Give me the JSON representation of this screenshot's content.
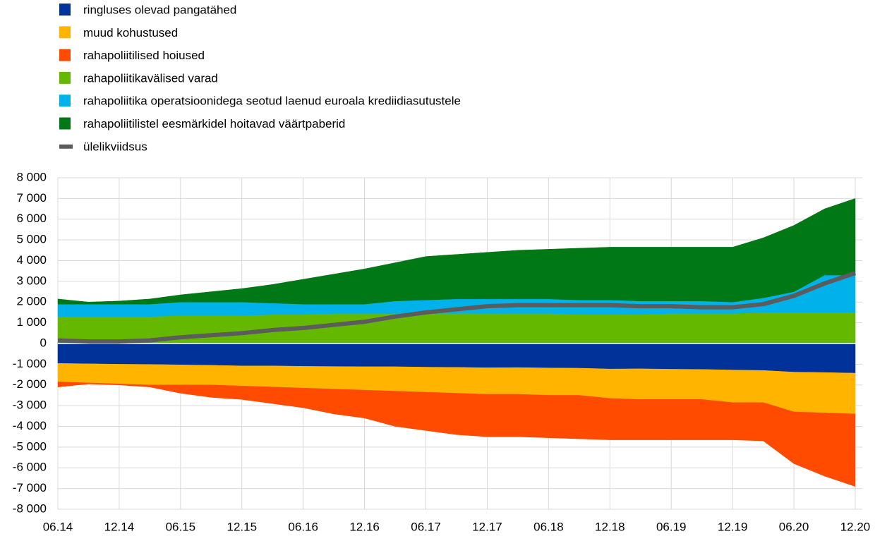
{
  "chart_data": {
    "type": "area",
    "stacked": true,
    "categories": [
      "06.14",
      null,
      "12.14",
      null,
      "06.15",
      null,
      "12.15",
      null,
      "06.16",
      null,
      "12.16",
      null,
      "06.17",
      null,
      "12.17",
      null,
      "06.18",
      null,
      "12.18",
      null,
      "06.19",
      null,
      "12.19",
      null,
      "06.20",
      null,
      "12.20"
    ],
    "ylim": [
      -8000,
      8000
    ],
    "yticks": [
      {
        "value": 8000,
        "label": "8 000"
      },
      {
        "value": 7000,
        "label": "7 000"
      },
      {
        "value": 6000,
        "label": "6 000"
      },
      {
        "value": 5000,
        "label": "5 000"
      },
      {
        "value": 4000,
        "label": "4 000"
      },
      {
        "value": 3000,
        "label": "3 000"
      },
      {
        "value": 2000,
        "label": "2 000"
      },
      {
        "value": 1000,
        "label": "1 000"
      },
      0,
      {
        "value": -1000,
        "label": "-1 000"
      },
      {
        "value": -2000,
        "label": "-2 000"
      },
      {
        "value": -3000,
        "label": "-3 000"
      },
      {
        "value": -4000,
        "label": "-4 000"
      },
      {
        "value": -5000,
        "label": "-5 000"
      },
      {
        "value": -6000,
        "label": "-6 000"
      },
      {
        "value": -7000,
        "label": "-7 000"
      },
      {
        "value": -8000,
        "label": "-8 000"
      }
    ],
    "grid": true,
    "series": [
      {
        "name": "ringluses olevad pangatähed",
        "color": "#003299",
        "values": [
          -960,
          -980,
          -1000,
          -1010,
          -1030,
          -1050,
          -1080,
          -1080,
          -1100,
          -1110,
          -1120,
          -1120,
          -1140,
          -1150,
          -1170,
          -1160,
          -1180,
          -1190,
          -1230,
          -1220,
          -1240,
          -1250,
          -1280,
          -1300,
          -1380,
          -1400,
          -1430
        ]
      },
      {
        "name": "muud kohustused",
        "color": "#ffb400",
        "values": [
          -890,
          -920,
          -950,
          -990,
          -970,
          -950,
          -970,
          -1020,
          -1050,
          -1090,
          -1130,
          -1180,
          -1210,
          -1250,
          -1280,
          -1290,
          -1320,
          -1310,
          -1420,
          -1480,
          -1460,
          -1450,
          -1570,
          -1550,
          -1920,
          -1950,
          -1970
        ]
      },
      {
        "name": "rahapoliitilised hoiused",
        "color": "#ff4b00",
        "values": [
          -250,
          -50,
          -50,
          -100,
          -400,
          -600,
          -650,
          -800,
          -950,
          -1200,
          -1350,
          -1700,
          -1850,
          -2000,
          -2050,
          -2050,
          -2050,
          -2100,
          -2000,
          -1950,
          -1950,
          -1950,
          -1800,
          -1850,
          -2500,
          -3050,
          -3500
        ]
      },
      {
        "name": "rahapoliitikavälised varad",
        "color": "#65b800",
        "values": [
          1300,
          1300,
          1300,
          1300,
          1350,
          1350,
          1350,
          1400,
          1400,
          1450,
          1450,
          1450,
          1450,
          1450,
          1450,
          1450,
          1450,
          1400,
          1400,
          1400,
          1450,
          1450,
          1450,
          1500,
          1500,
          1500,
          1500
        ]
      },
      {
        "name": "rahapoliitika operatsioonidega  seotud  laenud  euroala  krediidiasutustele",
        "color": "#00b1ea",
        "values": [
          600,
          600,
          600,
          600,
          650,
          650,
          650,
          550,
          500,
          450,
          450,
          600,
          650,
          700,
          700,
          700,
          700,
          700,
          700,
          650,
          600,
          600,
          550,
          700,
          1000,
          1800,
          1800
        ]
      },
      {
        "name": "rahapoliitilistel eesmärkidel hoitavad väärtpaberid",
        "color": "#007816",
        "values": [
          250,
          100,
          150,
          250,
          350,
          500,
          650,
          900,
          1200,
          1450,
          1700,
          1850,
          2100,
          2150,
          2250,
          2350,
          2400,
          2500,
          2550,
          2600,
          2600,
          2600,
          2650,
          2900,
          3200,
          3200,
          3700
        ]
      },
      {
        "name": "ülelikviidsus",
        "color": "#5c5c5c",
        "type": "line",
        "values": [
          150,
          100,
          100,
          150,
          300,
          400,
          500,
          650,
          750,
          900,
          1050,
          1300,
          1500,
          1650,
          1800,
          1850,
          1850,
          1850,
          1850,
          1800,
          1800,
          1750,
          1750,
          1900,
          2300,
          2900,
          3400
        ]
      }
    ]
  }
}
